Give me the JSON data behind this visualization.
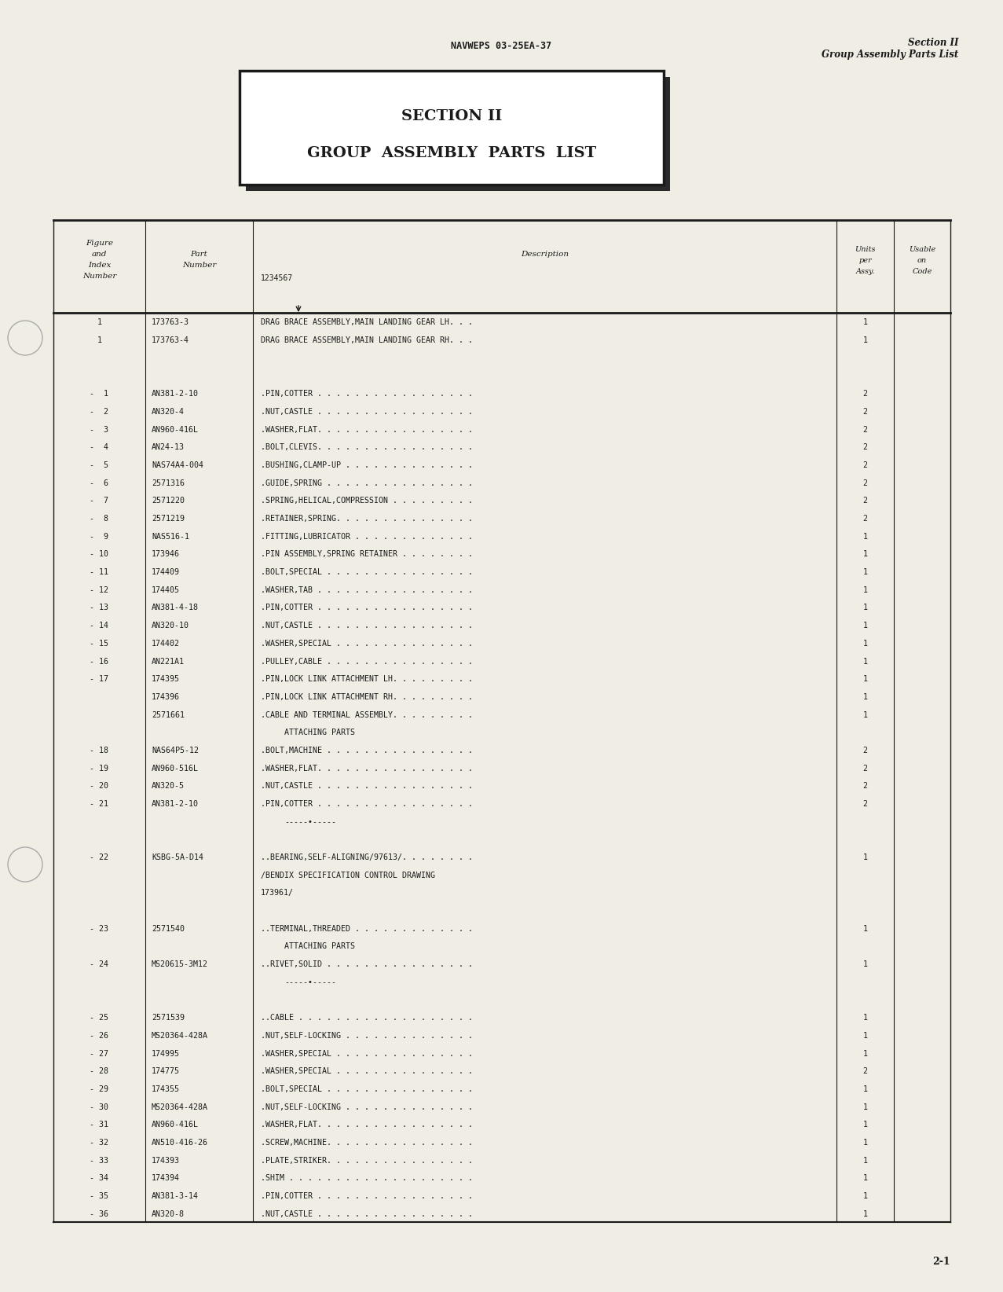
{
  "bg_color": "#f0ede4",
  "header_center": "NAVWEPS 03-25EA-37",
  "header_right_line1": "Section II",
  "header_right_line2": "Group Assembly Parts List",
  "section_title_line1": "SECTION II",
  "section_title_line2": "GROUP  ASSEMBLY  PARTS  LIST",
  "page_number": "2-1",
  "rows": [
    {
      "fig": "1",
      "part": "173763-3",
      "desc": "DRAG BRACE ASSEMBLY,MAIN LANDING GEAR LH. . .",
      "units": "1",
      "blank": true
    },
    {
      "fig": "1",
      "part": "173763-4",
      "desc": "DRAG BRACE ASSEMBLY,MAIN LANDING GEAR RH. . .",
      "units": "1",
      "blank": false
    },
    {
      "fig": "",
      "part": "",
      "desc": "",
      "units": "",
      "blank": false
    },
    {
      "fig": "",
      "part": "",
      "desc": "",
      "units": "",
      "blank": false
    },
    {
      "fig": "-  1",
      "part": "AN381-2-10",
      "desc": ".PIN,COTTER . . . . . . . . . . . . . . . . .",
      "units": "2",
      "blank": false
    },
    {
      "fig": "-  2",
      "part": "AN320-4",
      "desc": ".NUT,CASTLE . . . . . . . . . . . . . . . . .",
      "units": "2",
      "blank": false
    },
    {
      "fig": "-  3",
      "part": "AN960-416L",
      "desc": ".WASHER,FLAT. . . . . . . . . . . . . . . . .",
      "units": "2",
      "blank": false
    },
    {
      "fig": "-  4",
      "part": "AN24-13",
      "desc": ".BOLT,CLEVIS. . . . . . . . . . . . . . . . .",
      "units": "2",
      "blank": false
    },
    {
      "fig": "-  5",
      "part": "NAS74A4-004",
      "desc": ".BUSHING,CLAMP-UP . . . . . . . . . . . . . .",
      "units": "2",
      "blank": false
    },
    {
      "fig": "-  6",
      "part": "2571316",
      "desc": ".GUIDE,SPRING . . . . . . . . . . . . . . . .",
      "units": "2",
      "blank": false
    },
    {
      "fig": "-  7",
      "part": "2571220",
      "desc": ".SPRING,HELICAL,COMPRESSION . . . . . . . . .",
      "units": "2",
      "blank": false
    },
    {
      "fig": "-  8",
      "part": "2571219",
      "desc": ".RETAINER,SPRING. . . . . . . . . . . . . . .",
      "units": "2",
      "blank": false
    },
    {
      "fig": "-  9",
      "part": "NAS516-1",
      "desc": ".FITTING,LUBRICATOR . . . . . . . . . . . . .",
      "units": "1",
      "blank": false
    },
    {
      "fig": "- 10",
      "part": "173946",
      "desc": ".PIN ASSEMBLY,SPRING RETAINER . . . . . . . .",
      "units": "1",
      "blank": false
    },
    {
      "fig": "- 11",
      "part": "174409",
      "desc": ".BOLT,SPECIAL . . . . . . . . . . . . . . . .",
      "units": "1",
      "blank": false
    },
    {
      "fig": "- 12",
      "part": "174405",
      "desc": ".WASHER,TAB . . . . . . . . . . . . . . . . .",
      "units": "1",
      "blank": false
    },
    {
      "fig": "- 13",
      "part": "AN381-4-18",
      "desc": ".PIN,COTTER . . . . . . . . . . . . . . . . .",
      "units": "1",
      "blank": false
    },
    {
      "fig": "- 14",
      "part": "AN320-10",
      "desc": ".NUT,CASTLE . . . . . . . . . . . . . . . . .",
      "units": "1",
      "blank": false
    },
    {
      "fig": "- 15",
      "part": "174402",
      "desc": ".WASHER,SPECIAL . . . . . . . . . . . . . . .",
      "units": "1",
      "blank": false
    },
    {
      "fig": "- 16",
      "part": "AN221A1",
      "desc": ".PULLEY,CABLE . . . . . . . . . . . . . . . .",
      "units": "1",
      "blank": false
    },
    {
      "fig": "- 17",
      "part": "174395",
      "desc": ".PIN,LOCK LINK ATTACHMENT LH. . . . . . . . .",
      "units": "1",
      "blank": false
    },
    {
      "fig": "",
      "part": "174396",
      "desc": ".PIN,LOCK LINK ATTACHMENT RH. . . . . . . . .",
      "units": "1",
      "blank": false
    },
    {
      "fig": "",
      "part": "2571661",
      "desc": ".CABLE AND TERMINAL ASSEMBLY. . . . . . . . .",
      "units": "1",
      "blank": false
    },
    {
      "fig": "",
      "part": "",
      "desc": "ATTACHING PARTS",
      "units": "",
      "blank": false
    },
    {
      "fig": "- 18",
      "part": "NAS64P5-12",
      "desc": ".BOLT,MACHINE . . . . . . . . . . . . . . . .",
      "units": "2",
      "blank": false
    },
    {
      "fig": "- 19",
      "part": "AN960-516L",
      "desc": ".WASHER,FLAT. . . . . . . . . . . . . . . . .",
      "units": "2",
      "blank": false
    },
    {
      "fig": "- 20",
      "part": "AN320-5",
      "desc": ".NUT,CASTLE . . . . . . . . . . . . . . . . .",
      "units": "2",
      "blank": false
    },
    {
      "fig": "- 21",
      "part": "AN381-2-10",
      "desc": ".PIN,COTTER . . . . . . . . . . . . . . . . .",
      "units": "2",
      "blank": false
    },
    {
      "fig": "",
      "part": "",
      "desc": "-----•-----",
      "units": "",
      "blank": false
    },
    {
      "fig": "",
      "part": "",
      "desc": "",
      "units": "",
      "blank": false
    },
    {
      "fig": "- 22",
      "part": "KSBG-5A-D14",
      "desc": "..BEARING,SELF-ALIGNING/97613/. . . . . . . .",
      "units": "1",
      "blank": false
    },
    {
      "fig": "",
      "part": "",
      "desc": "    /BENDIX SPECIFICATION CONTROL DRAWING",
      "units": "",
      "blank": false
    },
    {
      "fig": "",
      "part": "",
      "desc": "    173961/",
      "units": "",
      "blank": false
    },
    {
      "fig": "",
      "part": "",
      "desc": "",
      "units": "",
      "blank": false
    },
    {
      "fig": "- 23",
      "part": "2571540",
      "desc": "..TERMINAL,THREADED . . . . . . . . . . . . .",
      "units": "1",
      "blank": false
    },
    {
      "fig": "",
      "part": "",
      "desc": "ATTACHING PARTS",
      "units": "",
      "blank": false
    },
    {
      "fig": "- 24",
      "part": "MS20615-3M12",
      "desc": "..RIVET,SOLID . . . . . . . . . . . . . . . .",
      "units": "1",
      "blank": false
    },
    {
      "fig": "",
      "part": "",
      "desc": "-----•-----",
      "units": "",
      "blank": false
    },
    {
      "fig": "",
      "part": "",
      "desc": "",
      "units": "",
      "blank": false
    },
    {
      "fig": "- 25",
      "part": "2571539",
      "desc": "..CABLE . . . . . . . . . . . . . . . . . . .",
      "units": "1",
      "blank": false
    },
    {
      "fig": "- 26",
      "part": "MS20364-428A",
      "desc": ".NUT,SELF-LOCKING . . . . . . . . . . . . . .",
      "units": "1",
      "blank": false
    },
    {
      "fig": "- 27",
      "part": "174995",
      "desc": ".WASHER,SPECIAL . . . . . . . . . . . . . . .",
      "units": "1",
      "blank": false
    },
    {
      "fig": "- 28",
      "part": "174775",
      "desc": ".WASHER,SPECIAL . . . . . . . . . . . . . . .",
      "units": "2",
      "blank": false
    },
    {
      "fig": "- 29",
      "part": "174355",
      "desc": ".BOLT,SPECIAL . . . . . . . . . . . . . . . .",
      "units": "1",
      "blank": false
    },
    {
      "fig": "- 30",
      "part": "MS20364-428A",
      "desc": ".NUT,SELF-LOCKING . . . . . . . . . . . . . .",
      "units": "1",
      "blank": false
    },
    {
      "fig": "- 31",
      "part": "AN960-416L",
      "desc": ".WASHER,FLAT. . . . . . . . . . . . . . . . .",
      "units": "1",
      "blank": false
    },
    {
      "fig": "- 32",
      "part": "AN510-416-26",
      "desc": ".SCREW,MACHINE. . . . . . . . . . . . . . . .",
      "units": "1",
      "blank": false
    },
    {
      "fig": "- 33",
      "part": "174393",
      "desc": ".PLATE,STRIKER. . . . . . . . . . . . . . . .",
      "units": "1",
      "blank": false
    },
    {
      "fig": "- 34",
      "part": "174394",
      "desc": ".SHIM . . . . . . . . . . . . . . . . . . . .",
      "units": "1",
      "blank": false
    },
    {
      "fig": "- 35",
      "part": "AN381-3-14",
      "desc": ".PIN,COTTER . . . . . . . . . . . . . . . . .",
      "units": "1",
      "blank": false
    },
    {
      "fig": "- 36",
      "part": "AN320-8",
      "desc": ".NUT,CASTLE . . . . . . . . . . . . . . . . .",
      "units": "1",
      "blank": false
    }
  ]
}
